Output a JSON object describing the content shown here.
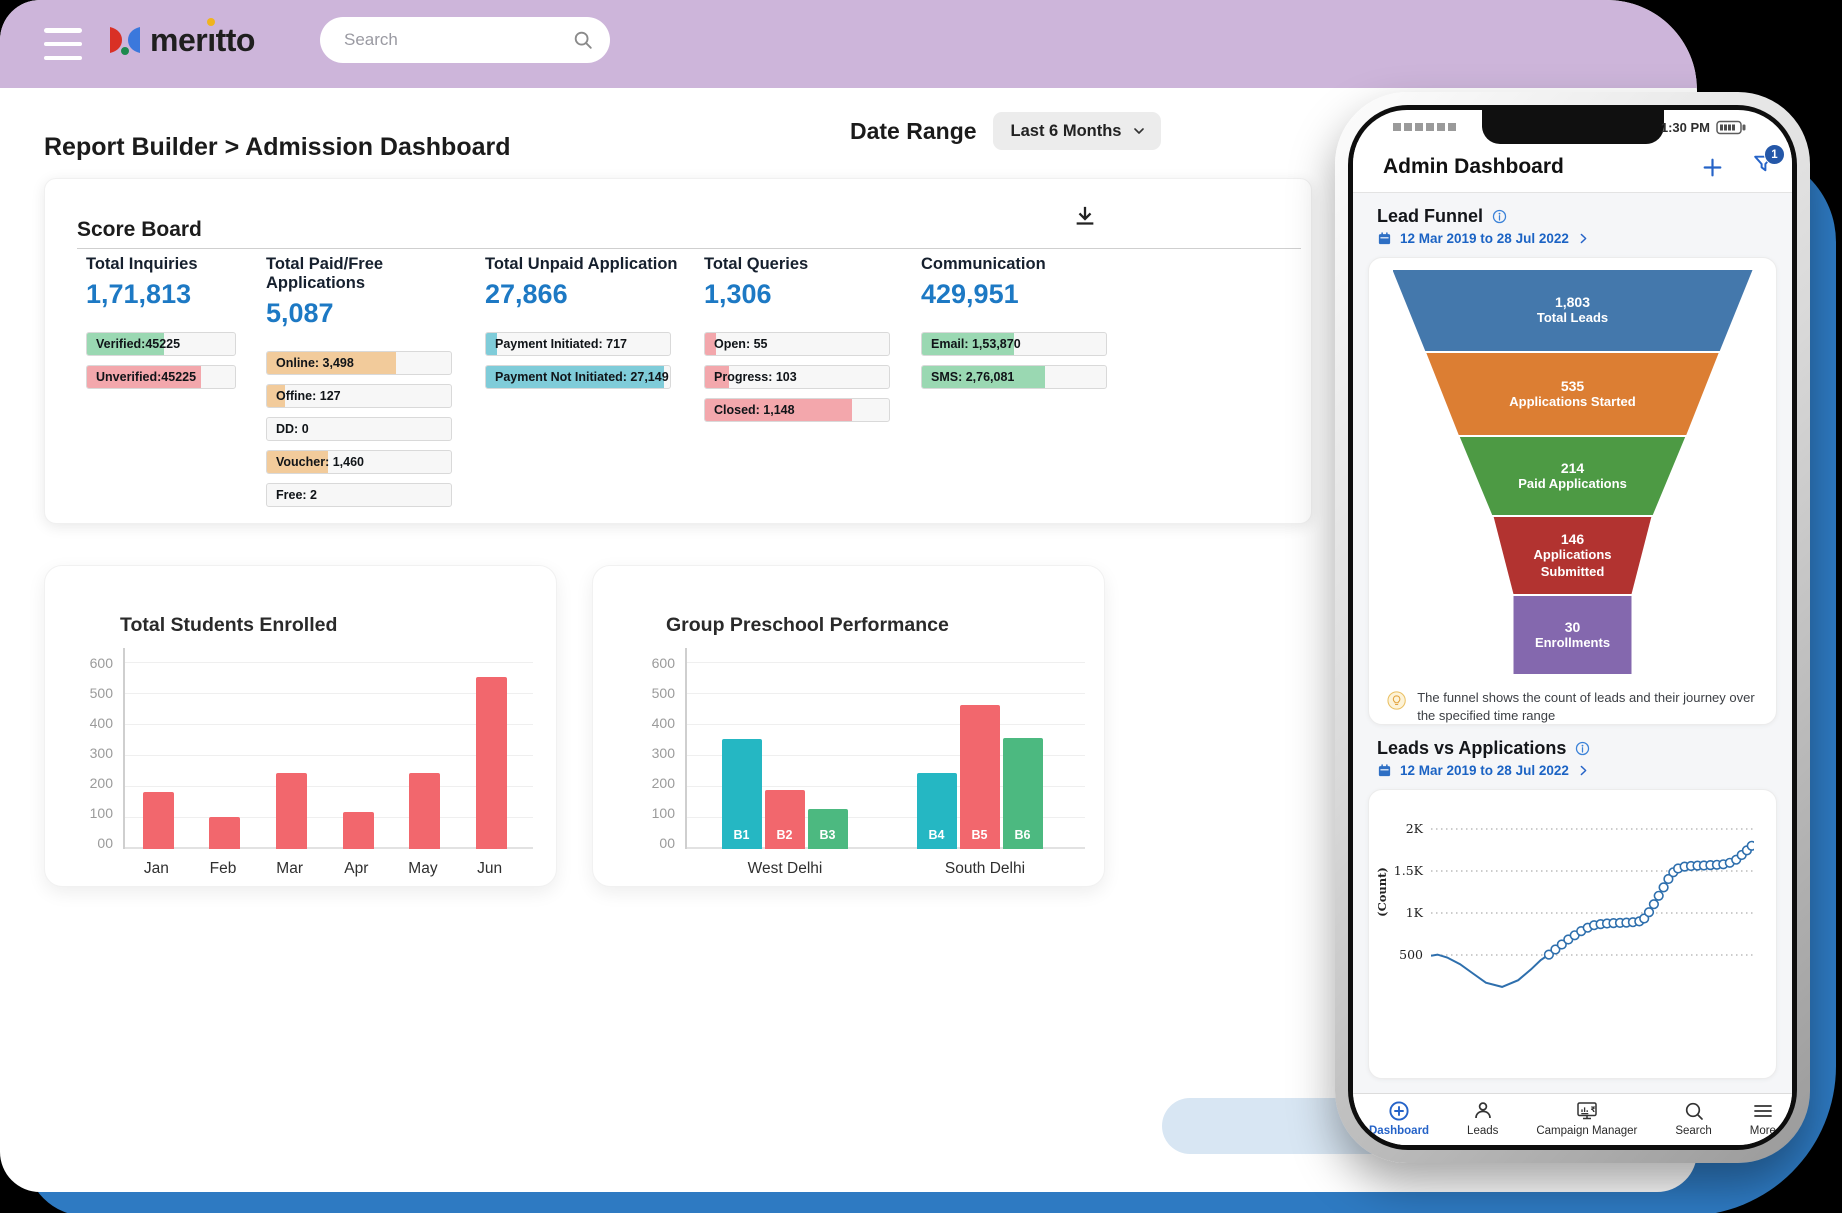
{
  "header": {
    "logo_text": "meritto",
    "search_placeholder": "Search"
  },
  "breadcrumb": "Report Builder > Admission Dashboard",
  "date_range": {
    "label": "Date Range",
    "value": "Last 6 Months"
  },
  "scoreboard": {
    "title": "Score Board",
    "metrics": [
      {
        "name": "Total Inquiries",
        "value": "1,71,813",
        "stats": [
          {
            "label": "Verified:45225",
            "fill": 52,
            "color": "#9ad8b2"
          },
          {
            "label": "Unverified:45225",
            "fill": 77,
            "color": "#f3a7ac"
          }
        ]
      },
      {
        "name": "Total Paid/Free Applications",
        "value": "5,087",
        "stats": [
          {
            "label": "Online: 3,498",
            "fill": 70,
            "color": "#f2cb9b"
          },
          {
            "label": "Offine: 127",
            "fill": 10,
            "color": "#f2cb9b"
          },
          {
            "label": "DD: 0",
            "fill": 0,
            "color": "#f2cb9b"
          },
          {
            "label": "Voucher: 1,460",
            "fill": 33,
            "color": "#f2cb9b"
          },
          {
            "label": "Free: 2",
            "fill": 0,
            "color": "#f2cb9b"
          }
        ]
      },
      {
        "name": "Total Unpaid Application",
        "value": "27,866",
        "stats": [
          {
            "label": "Payment Initiated: 717",
            "fill": 6,
            "color": "#7fccd9"
          },
          {
            "label": "Payment Not Initiated: 27,149",
            "fill": 97,
            "color": "#7fccd9"
          }
        ]
      },
      {
        "name": "Total Queries",
        "value": "1,306",
        "stats": [
          {
            "label": "Open: 55",
            "fill": 6,
            "color": "#f3a7ac"
          },
          {
            "label": "Progress: 103",
            "fill": 13,
            "color": "#f3a7ac"
          },
          {
            "label": "Closed: 1,148",
            "fill": 80,
            "color": "#f3a7ac"
          }
        ]
      },
      {
        "name": "Communication",
        "value": "429,951",
        "stats": [
          {
            "label": "Email: 1,53,870",
            "fill": 50,
            "color": "#9ad8b2"
          },
          {
            "label": "SMS: 2,76,081",
            "fill": 67,
            "color": "#9ad8b2"
          }
        ]
      }
    ]
  },
  "phone": {
    "status": {
      "time": "1:30 PM"
    },
    "app_header": {
      "title": "Admin Dashboard",
      "notification_count": "1"
    },
    "lead_funnel": {
      "title": "Lead Funnel",
      "date_range": "12 Mar 2019 to 28 Jul 2022",
      "tip": "The funnel shows the count of leads and their journey over the specified time range"
    },
    "leads_vs_applications": {
      "title": "Leads vs Applications",
      "date_range": "12 Mar 2019 to 28 Jul 2022"
    },
    "nav": [
      {
        "label": "Dashboard",
        "icon": "dashboard",
        "active": true
      },
      {
        "label": "Leads",
        "icon": "leads",
        "active": false
      },
      {
        "label": "Campaign Manager",
        "icon": "campaign",
        "active": false
      },
      {
        "label": "Search",
        "icon": "search",
        "active": false
      },
      {
        "label": "More",
        "icon": "more",
        "active": false
      }
    ]
  },
  "chart_data": [
    {
      "id": "total_students_enrolled",
      "type": "bar",
      "title": "Total Students Enrolled",
      "categories": [
        "Jan",
        "Feb",
        "Mar",
        "Apr",
        "May",
        "Jun"
      ],
      "values": [
        185,
        105,
        245,
        120,
        245,
        555
      ],
      "bar_color": "#f2676d",
      "ylim": [
        0,
        650
      ],
      "ytick_labels": [
        "00",
        "100",
        "200",
        "300",
        "400",
        "500",
        "600"
      ],
      "ytick_values": [
        0,
        100,
        200,
        300,
        400,
        500,
        600
      ],
      "grid": true,
      "legend": "none"
    },
    {
      "id": "group_preschool_performance",
      "type": "grouped_bar",
      "title": "Group Preschool Performance",
      "ylim": [
        0,
        650
      ],
      "ytick_labels": [
        "00",
        "100",
        "200",
        "300",
        "400",
        "500",
        "600"
      ],
      "ytick_values": [
        0,
        100,
        200,
        300,
        400,
        500,
        600
      ],
      "groups": [
        {
          "label": "West Delhi",
          "bars": [
            {
              "name": "B1",
              "value": 355,
              "color": "#25b7c3"
            },
            {
              "name": "B2",
              "value": 190,
              "color": "#f2676d"
            },
            {
              "name": "B3",
              "value": 130,
              "color": "#4cb980"
            }
          ]
        },
        {
          "label": "South Delhi",
          "bars": [
            {
              "name": "B4",
              "value": 245,
              "color": "#25b7c3"
            },
            {
              "name": "B5",
              "value": 465,
              "color": "#f2676d"
            },
            {
              "name": "B6",
              "value": 360,
              "color": "#4cb980"
            }
          ]
        }
      ],
      "grid": true,
      "legend": "none"
    },
    {
      "id": "lead_funnel",
      "type": "funnel",
      "segments": [
        {
          "value": "1,803",
          "label": "Total Leads",
          "color": "#4478ac"
        },
        {
          "value": "535",
          "label": "Applications Started",
          "color": "#dc7e33"
        },
        {
          "value": "214",
          "label": "Paid Applications",
          "color": "#4d9a44"
        },
        {
          "value": "146",
          "label": "Applications Submitted",
          "color": "#b23330"
        },
        {
          "value": "30",
          "label": "Enrollments",
          "color": "#8468ae"
        }
      ]
    },
    {
      "id": "leads_vs_applications",
      "type": "line",
      "ylabel": "(Count)",
      "line_color": "#2e6fad",
      "ytick_labels": [
        "2K",
        "1.5K",
        "1K",
        "500"
      ],
      "ytick_values": [
        2000,
        1500,
        1000,
        500
      ],
      "lead_points": [
        [
          0,
          490
        ],
        [
          0.02,
          505
        ],
        [
          0.05,
          470
        ],
        [
          0.09,
          390
        ],
        [
          0.13,
          280
        ],
        [
          0.17,
          170
        ],
        [
          0.22,
          120
        ],
        [
          0.27,
          200
        ],
        [
          0.31,
          330
        ],
        [
          0.34,
          440
        ]
      ],
      "points": [
        [
          0.365,
          505
        ],
        [
          0.385,
          565
        ],
        [
          0.405,
          625
        ],
        [
          0.425,
          685
        ],
        [
          0.445,
          735
        ],
        [
          0.465,
          785
        ],
        [
          0.485,
          825
        ],
        [
          0.505,
          855
        ],
        [
          0.525,
          868
        ],
        [
          0.545,
          875
        ],
        [
          0.565,
          880
        ],
        [
          0.585,
          882
        ],
        [
          0.605,
          886
        ],
        [
          0.625,
          890
        ],
        [
          0.645,
          900
        ],
        [
          0.66,
          935
        ],
        [
          0.675,
          1010
        ],
        [
          0.69,
          1105
        ],
        [
          0.705,
          1205
        ],
        [
          0.72,
          1305
        ],
        [
          0.735,
          1405
        ],
        [
          0.75,
          1485
        ],
        [
          0.765,
          1530
        ],
        [
          0.785,
          1552
        ],
        [
          0.805,
          1560
        ],
        [
          0.825,
          1564
        ],
        [
          0.845,
          1566
        ],
        [
          0.865,
          1570
        ],
        [
          0.885,
          1574
        ],
        [
          0.905,
          1580
        ],
        [
          0.925,
          1598
        ],
        [
          0.945,
          1635
        ],
        [
          0.962,
          1690
        ],
        [
          0.978,
          1745
        ],
        [
          0.993,
          1800
        ]
      ],
      "grid": "dotted"
    }
  ]
}
